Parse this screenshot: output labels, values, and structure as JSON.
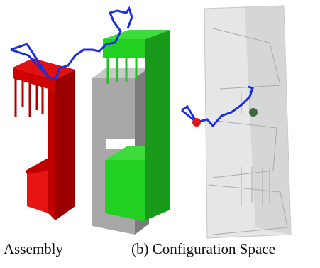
{
  "figure": {
    "captions": [
      "Assembly",
      "(b) Configuration Space"
    ]
  }
}
